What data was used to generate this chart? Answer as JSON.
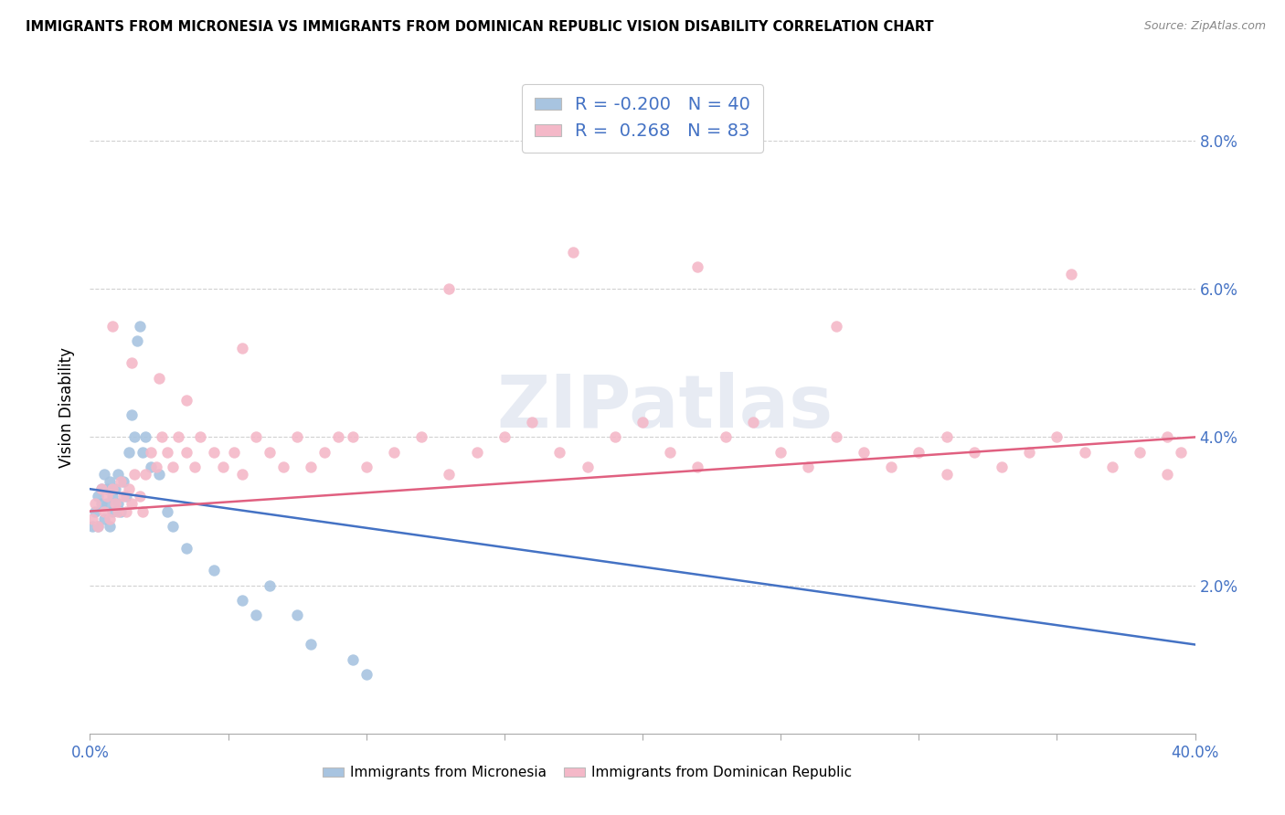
{
  "title": "IMMIGRANTS FROM MICRONESIA VS IMMIGRANTS FROM DOMINICAN REPUBLIC VISION DISABILITY CORRELATION CHART",
  "source": "Source: ZipAtlas.com",
  "ylabel": "Vision Disability",
  "xlim": [
    0.0,
    0.4
  ],
  "ylim": [
    0.0,
    0.088
  ],
  "xtick_positions": [
    0.0,
    0.05,
    0.1,
    0.15,
    0.2,
    0.25,
    0.3,
    0.35,
    0.4
  ],
  "xticklabels": [
    "0.0%",
    "",
    "",
    "",
    "",
    "",
    "",
    "",
    "40.0%"
  ],
  "ytick_positions": [
    0.02,
    0.04,
    0.06,
    0.08
  ],
  "ytick_labels": [
    "2.0%",
    "4.0%",
    "6.0%",
    "8.0%"
  ],
  "color_blue_fill": "#a8c4e0",
  "color_pink_fill": "#f4b8c8",
  "color_blue_line": "#4472C4",
  "color_pink_line": "#E06080",
  "color_blue_text": "#4472C4",
  "watermark": "ZIPatlas",
  "blue_trend_start": 0.033,
  "blue_trend_end": 0.012,
  "pink_trend_start": 0.03,
  "pink_trend_end": 0.04,
  "blue_x": [
    0.001,
    0.002,
    0.003,
    0.003,
    0.004,
    0.004,
    0.005,
    0.005,
    0.006,
    0.006,
    0.007,
    0.007,
    0.008,
    0.008,
    0.009,
    0.01,
    0.01,
    0.011,
    0.012,
    0.013,
    0.014,
    0.015,
    0.016,
    0.017,
    0.018,
    0.019,
    0.02,
    0.022,
    0.025,
    0.028,
    0.03,
    0.035,
    0.045,
    0.055,
    0.06,
    0.065,
    0.075,
    0.08,
    0.095,
    0.1
  ],
  "blue_y": [
    0.028,
    0.03,
    0.032,
    0.028,
    0.033,
    0.031,
    0.029,
    0.035,
    0.033,
    0.031,
    0.028,
    0.034,
    0.032,
    0.03,
    0.033,
    0.031,
    0.035,
    0.03,
    0.034,
    0.032,
    0.038,
    0.043,
    0.04,
    0.053,
    0.055,
    0.038,
    0.04,
    0.036,
    0.035,
    0.03,
    0.028,
    0.025,
    0.022,
    0.018,
    0.016,
    0.02,
    0.016,
    0.012,
    0.01,
    0.008
  ],
  "pink_x": [
    0.001,
    0.002,
    0.003,
    0.004,
    0.005,
    0.006,
    0.007,
    0.008,
    0.009,
    0.01,
    0.011,
    0.012,
    0.013,
    0.014,
    0.015,
    0.016,
    0.018,
    0.019,
    0.02,
    0.022,
    0.024,
    0.026,
    0.028,
    0.03,
    0.032,
    0.035,
    0.038,
    0.04,
    0.045,
    0.048,
    0.052,
    0.055,
    0.06,
    0.065,
    0.07,
    0.075,
    0.08,
    0.085,
    0.09,
    0.1,
    0.11,
    0.12,
    0.13,
    0.14,
    0.15,
    0.16,
    0.17,
    0.18,
    0.19,
    0.2,
    0.21,
    0.22,
    0.23,
    0.24,
    0.25,
    0.26,
    0.27,
    0.28,
    0.29,
    0.3,
    0.31,
    0.32,
    0.33,
    0.34,
    0.35,
    0.36,
    0.37,
    0.38,
    0.39,
    0.395,
    0.008,
    0.015,
    0.025,
    0.035,
    0.055,
    0.095,
    0.13,
    0.175,
    0.22,
    0.27,
    0.31,
    0.355,
    0.39
  ],
  "pink_y": [
    0.029,
    0.031,
    0.028,
    0.033,
    0.03,
    0.032,
    0.029,
    0.033,
    0.031,
    0.03,
    0.034,
    0.032,
    0.03,
    0.033,
    0.031,
    0.035,
    0.032,
    0.03,
    0.035,
    0.038,
    0.036,
    0.04,
    0.038,
    0.036,
    0.04,
    0.038,
    0.036,
    0.04,
    0.038,
    0.036,
    0.038,
    0.035,
    0.04,
    0.038,
    0.036,
    0.04,
    0.036,
    0.038,
    0.04,
    0.036,
    0.038,
    0.04,
    0.035,
    0.038,
    0.04,
    0.042,
    0.038,
    0.036,
    0.04,
    0.042,
    0.038,
    0.036,
    0.04,
    0.042,
    0.038,
    0.036,
    0.04,
    0.038,
    0.036,
    0.038,
    0.04,
    0.038,
    0.036,
    0.038,
    0.04,
    0.038,
    0.036,
    0.038,
    0.04,
    0.038,
    0.055,
    0.05,
    0.048,
    0.045,
    0.052,
    0.04,
    0.06,
    0.065,
    0.063,
    0.055,
    0.035,
    0.062,
    0.035
  ]
}
